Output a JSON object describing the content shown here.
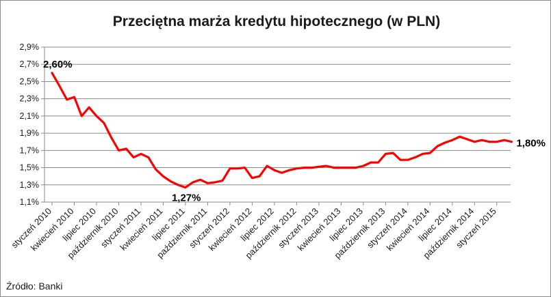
{
  "chart_data": {
    "type": "line",
    "title": "Przeciętna marża kredytu hipotecznego (w PLN)",
    "xlabel": "",
    "ylabel": "",
    "ylim": [
      1.1,
      2.9
    ],
    "y_ticks": [
      "1,1%",
      "1,3%",
      "1,5%",
      "1,7%",
      "1,9%",
      "2,1%",
      "2,3%",
      "2,5%",
      "2,7%",
      "2,9%"
    ],
    "x_tick_labels": [
      "styczeń 2010",
      "kwiecień 2010",
      "lipiec 2010",
      "październik 2010",
      "styczeń 2011",
      "kwiecień 2011",
      "lipiec 2011",
      "październik 2011",
      "styczeń 2012",
      "kwiecień 2012",
      "lipiec 2012",
      "październik 2012",
      "styczeń 2013",
      "kwiecień 2013",
      "lipiec 2013",
      "październik 2013",
      "styczeń 2014",
      "kwiecień 2014",
      "lipiec 2014",
      "październik 2014",
      "styczeń 2015"
    ],
    "x_tick_step_months": 3,
    "grid": true,
    "legend": "none",
    "series": [
      {
        "color": "#ff0000",
        "values": [
          2.6,
          2.45,
          2.29,
          2.32,
          2.1,
          2.2,
          2.1,
          2.02,
          1.85,
          1.7,
          1.72,
          1.62,
          1.66,
          1.62,
          1.48,
          1.4,
          1.34,
          1.3,
          1.27,
          1.33,
          1.36,
          1.32,
          1.33,
          1.35,
          1.49,
          1.49,
          1.5,
          1.38,
          1.4,
          1.52,
          1.47,
          1.44,
          1.47,
          1.49,
          1.5,
          1.5,
          1.51,
          1.52,
          1.5,
          1.5,
          1.5,
          1.5,
          1.52,
          1.56,
          1.56,
          1.66,
          1.67,
          1.59,
          1.59,
          1.62,
          1.66,
          1.67,
          1.75,
          1.79,
          1.82,
          1.86,
          1.83,
          1.8,
          1.82,
          1.8,
          1.8,
          1.82,
          1.8
        ]
      }
    ],
    "annotations": [
      {
        "text": "2,60%",
        "index": 0
      },
      {
        "text": "1,27%",
        "index": 18
      },
      {
        "text": "1,80%",
        "index": 62
      }
    ],
    "source": "Źródło: Banki"
  }
}
